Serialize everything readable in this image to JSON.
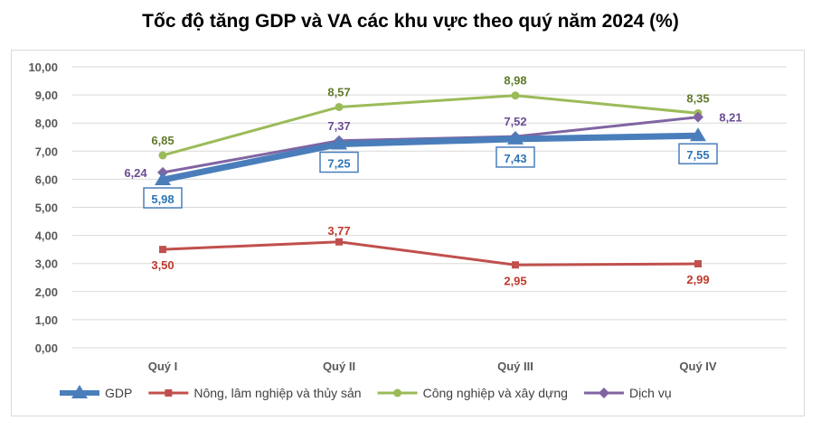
{
  "chart_data": {
    "type": "line",
    "title": "Tốc độ tăng GDP và VA các khu vực theo quý năm 2024 (%)",
    "categories": [
      "Quý I",
      "Quý II",
      "Quý III",
      "Quý IV"
    ],
    "ylim": [
      0,
      10
    ],
    "yticks": [
      "0,00",
      "1,00",
      "2,00",
      "3,00",
      "4,00",
      "5,00",
      "6,00",
      "7,00",
      "8,00",
      "9,00",
      "10,00"
    ],
    "grid": true,
    "legend_position": "bottom",
    "series": [
      {
        "name": "GDP",
        "values": [
          5.98,
          7.25,
          7.43,
          7.55
        ],
        "labels": [
          "5,98",
          "7,25",
          "7,43",
          "7,55"
        ],
        "color": "#4a7ebb",
        "marker": "triangle"
      },
      {
        "name": "Nông, lâm nghiệp và thủy sản",
        "values": [
          3.5,
          3.77,
          2.95,
          2.99
        ],
        "labels": [
          "3,50",
          "3,77",
          "2,95",
          "2,99"
        ],
        "color": "#c0504d",
        "marker": "square"
      },
      {
        "name": "Công nghiệp và xây dựng",
        "values": [
          6.85,
          8.57,
          8.98,
          8.35
        ],
        "labels": [
          "6,85",
          "8,57",
          "8,98",
          "8,35"
        ],
        "color": "#9bbb59",
        "marker": "circle"
      },
      {
        "name": "Dịch vụ",
        "values": [
          6.24,
          7.37,
          7.52,
          8.21
        ],
        "labels": [
          "6,24",
          "7,37",
          "7,52",
          "8,21"
        ],
        "color": "#8064a2",
        "marker": "diamond"
      }
    ]
  }
}
